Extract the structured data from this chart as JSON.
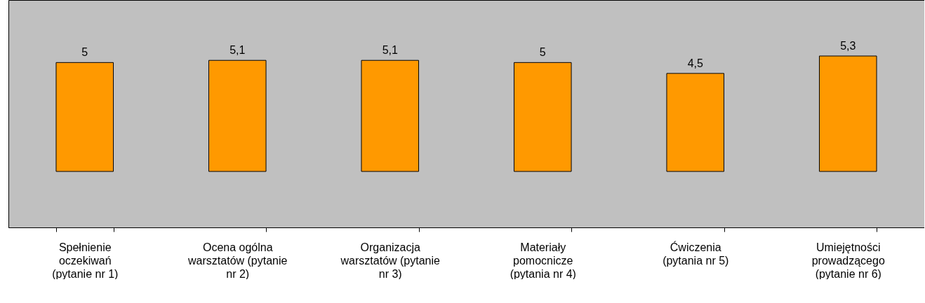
{
  "chart_data": {
    "type": "bar",
    "categories": [
      "Spełnienie\noczekiwań\n(pytanie nr 1)",
      "Ocena ogólna\nwarsztatów (pytanie\nnr 2)",
      "Organizacja\nwarsztatów (pytanie\nnr 3)",
      "Materiały\npomocnicze\n(pytania nr 4)",
      "Ćwiczenia\n(pytania nr 5)",
      "Umiejętności\nprowadzącego\n(pytanie nr 6)"
    ],
    "values": [
      5,
      5.1,
      5.1,
      5,
      4.5,
      5.3
    ],
    "value_labels": [
      "5",
      "5,1",
      "5,1",
      "5",
      "4,5",
      "5,3"
    ],
    "color": "#ff9900",
    "tick_labels": "x"
  }
}
